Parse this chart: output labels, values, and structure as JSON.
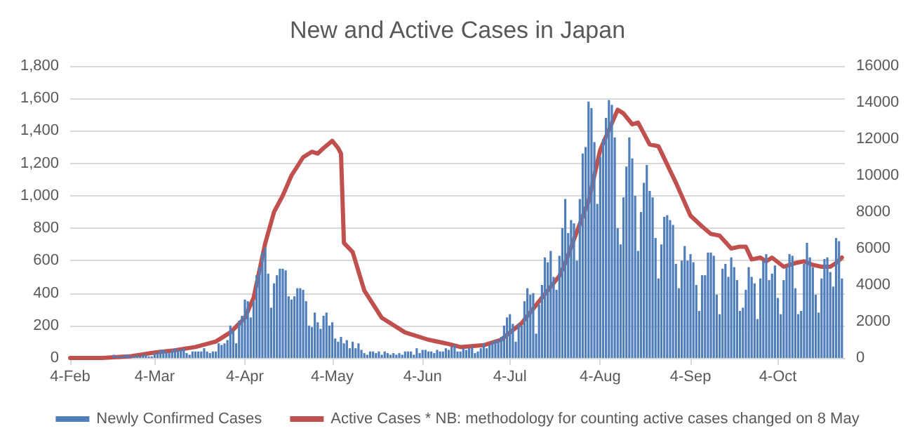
{
  "chart_data": {
    "type": "bar",
    "title": "New and Active Cases in Japan",
    "x": [
      "--02-04",
      "--02-05",
      "--02-06",
      "--02-07",
      "--02-08",
      "--02-09",
      "--02-10",
      "--02-11",
      "--02-12",
      "--02-13",
      "--02-14",
      "--02-15",
      "--02-16",
      "--02-17",
      "--02-18",
      "--02-19",
      "--02-20",
      "--02-21",
      "--02-22",
      "--02-23",
      "--02-24",
      "--02-25",
      "--02-26",
      "--02-27",
      "--02-28",
      "--02-29",
      "--03-01",
      "--03-02",
      "--03-03",
      "--03-04",
      "--03-05",
      "--03-06",
      "--03-07",
      "--03-08",
      "--03-09",
      "--03-10",
      "--03-11",
      "--03-12",
      "--03-13",
      "--03-14",
      "--03-15",
      "--03-16",
      "--03-17",
      "--03-18",
      "--03-19",
      "--03-20",
      "--03-21",
      "--03-22",
      "--03-23",
      "--03-24",
      "--03-25",
      "--03-26",
      "--03-27",
      "--03-28",
      "--03-29",
      "--03-30",
      "--03-31",
      "--04-01",
      "--04-02",
      "--04-03",
      "--04-04",
      "--04-05",
      "--04-06",
      "--04-07",
      "--04-08",
      "--04-09",
      "--04-10",
      "--04-11",
      "--04-12",
      "--04-13",
      "--04-14",
      "--04-15",
      "--04-16",
      "--04-17",
      "--04-18",
      "--04-19",
      "--04-20",
      "--04-21",
      "--04-22",
      "--04-23",
      "--04-24",
      "--04-25",
      "--04-26",
      "--04-27",
      "--04-28",
      "--04-29",
      "--04-30",
      "--05-01",
      "--05-02",
      "--05-03",
      "--05-04",
      "--05-05",
      "--05-06",
      "--05-07",
      "--05-08",
      "--05-09",
      "--05-10",
      "--05-11",
      "--05-12",
      "--05-13",
      "--05-14",
      "--05-15",
      "--05-16",
      "--05-17",
      "--05-18",
      "--05-19",
      "--05-20",
      "--05-21",
      "--05-22",
      "--05-23",
      "--05-24",
      "--05-25",
      "--05-26",
      "--05-27",
      "--05-28",
      "--05-29",
      "--05-30",
      "--05-31",
      "--06-01",
      "--06-02",
      "--06-03",
      "--06-04",
      "--06-05",
      "--06-06",
      "--06-07",
      "--06-08",
      "--06-09",
      "--06-10",
      "--06-11",
      "--06-12",
      "--06-13",
      "--06-14",
      "--06-15",
      "--06-16",
      "--06-17",
      "--06-18",
      "--06-19",
      "--06-20",
      "--06-21",
      "--06-22",
      "--06-23",
      "--06-24",
      "--06-25",
      "--06-26",
      "--06-27",
      "--06-28",
      "--06-29",
      "--06-30",
      "--07-01",
      "--07-02",
      "--07-03",
      "--07-04",
      "--07-05",
      "--07-06",
      "--07-07",
      "--07-08",
      "--07-09",
      "--07-10",
      "--07-11",
      "--07-12",
      "--07-13",
      "--07-14",
      "--07-15",
      "--07-16",
      "--07-17",
      "--07-18",
      "--07-19",
      "--07-20",
      "--07-21",
      "--07-22",
      "--07-23",
      "--07-24",
      "--07-25",
      "--07-26",
      "--07-27",
      "--07-28",
      "--07-29",
      "--07-30",
      "--07-31",
      "--08-01",
      "--08-02",
      "--08-03",
      "--08-04",
      "--08-05",
      "--08-06",
      "--08-07",
      "--08-08",
      "--08-09",
      "--08-10",
      "--08-11",
      "--08-12",
      "--08-13",
      "--08-14",
      "--08-15",
      "--08-16",
      "--08-17",
      "--08-18",
      "--08-19",
      "--08-20",
      "--08-21",
      "--08-22",
      "--08-23",
      "--08-24",
      "--08-25",
      "--08-26",
      "--08-27",
      "--08-28",
      "--08-29",
      "--08-30",
      "--08-31",
      "--09-01",
      "--09-02",
      "--09-03",
      "--09-04",
      "--09-05",
      "--09-06",
      "--09-07",
      "--09-08",
      "--09-09",
      "--09-10",
      "--09-11",
      "--09-12",
      "--09-13",
      "--09-14",
      "--09-15",
      "--09-16",
      "--09-17",
      "--09-18",
      "--09-19",
      "--09-20",
      "--09-21",
      "--09-22",
      "--09-23",
      "--09-24",
      "--09-25",
      "--09-26",
      "--09-27",
      "--09-28",
      "--09-29",
      "--09-30",
      "--10-01",
      "--10-02",
      "--10-03",
      "--10-04",
      "--10-05",
      "--10-06",
      "--10-07",
      "--10-08",
      "--10-09",
      "--10-10",
      "--10-11",
      "--10-12",
      "--10-13",
      "--10-14",
      "--10-15",
      "--10-16",
      "--10-17",
      "--10-18",
      "--10-19",
      "--10-20",
      "--10-21",
      "--10-22",
      "--10-23",
      "--10-24",
      "--10-25",
      "--10-26"
    ],
    "series": [
      {
        "name": "Newly Confirmed Cases",
        "color": "#4f7fbb",
        "values": [
          0,
          0,
          null,
          0,
          0,
          0,
          0,
          0,
          0,
          0,
          null,
          0,
          null,
          null,
          null,
          20,
          10,
          10,
          10,
          20,
          20,
          10,
          10,
          20,
          10,
          20,
          20,
          10,
          10,
          30,
          30,
          50,
          50,
          40,
          30,
          50,
          60,
          50,
          50,
          60,
          30,
          20,
          40,
          40,
          40,
          40,
          60,
          40,
          30,
          40,
          40,
          90,
          80,
          90,
          110,
          200,
          170,
          90,
          230,
          260,
          360,
          350,
          250,
          350,
          510,
          560,
          650,
          680,
          520,
          310,
          460,
          510,
          550,
          550,
          540,
          380,
          360,
          380,
          430,
          430,
          420,
          350,
          200,
          190,
          280,
          220,
          180,
          260,
          280,
          200,
          220,
          120,
          100,
          130,
          90,
          110,
          60,
          100,
          60,
          90,
          50,
          30,
          20,
          40,
          40,
          30,
          40,
          20,
          40,
          30,
          20,
          30,
          20,
          30,
          20,
          40,
          40,
          40,
          20,
          60,
          30,
          50,
          50,
          40,
          40,
          30,
          50,
          40,
          40,
          60,
          50,
          70,
          80,
          40,
          40,
          60,
          50,
          60,
          70,
          30,
          40,
          60,
          90,
          60,
          80,
          100,
          110,
          110,
          130,
          200,
          250,
          270,
          210,
          100,
          210,
          200,
          350,
          430,
          390,
          400,
          150,
          330,
          450,
          620,
          590,
          660,
          500,
          420,
          630,
          800,
          980,
          770,
          850,
          830,
          600,
          980,
          1260,
          1300,
          1580,
          1540,
          1330,
          950,
          1240,
          1350,
          1480,
          1590,
          1560,
          1360,
          800,
          700,
          990,
          1180,
          1360,
          1230,
          1000,
          660,
          900,
          1080,
          1190,
          1030,
          990,
          740,
          490,
          700,
          870,
          880,
          850,
          820,
          580,
          430,
          600,
          690,
          600,
          640,
          590,
          450,
          290,
          510,
          510,
          650,
          650,
          630,
          390,
          270,
          550,
          580,
          500,
          620,
          560,
          480,
          290,
          310,
          420,
          560,
          500,
          460,
          240,
          490,
          600,
          640,
          480,
          520,
          570,
          370,
          270,
          480,
          560,
          640,
          630,
          430,
          270,
          290,
          580,
          710,
          620,
          560,
          390,
          280,
          490,
          610,
          620,
          530,
          440,
          740,
          720,
          490
        ]
      },
      {
        "name": "Active Cases * NB: methodology for counting active cases changed on 8 May",
        "type": "line",
        "axis": "y2",
        "color": "#c0504d",
        "x": [
          "--02-04",
          "--02-15",
          "--02-25",
          "--03-04",
          "--03-10",
          "--03-18",
          "--03-25",
          "--03-30",
          "--04-04",
          "--04-07",
          "--04-11",
          "--04-14",
          "--04-17",
          "--04-20",
          "--04-24",
          "--04-27",
          "--04-29",
          "--05-01",
          "--05-04",
          "--05-06",
          "--05-07",
          "--05-08",
          "--05-11",
          "--05-15",
          "--05-21",
          "--05-29",
          "--06-06",
          "--06-12",
          "--06-17",
          "--06-25",
          "--07-01",
          "--07-04",
          "--07-08",
          "--07-12",
          "--07-16",
          "--07-21",
          "--07-23",
          "--07-26",
          "--07-31",
          "--08-02",
          "--08-04",
          "--08-07",
          "--08-10",
          "--08-12",
          "--08-15",
          "--08-17",
          "--08-21",
          "--08-24",
          "--08-27",
          "--08-30",
          "--09-04",
          "--09-08",
          "--09-11",
          "--09-14",
          "--09-18",
          "--09-21",
          "--09-23",
          "--09-25",
          "--09-28",
          "--09-30",
          "--10-02",
          "--10-06",
          "--10-10",
          "--10-13",
          "--10-16",
          "--10-19",
          "--10-22",
          "--10-24",
          "--10-26"
        ],
        "values": [
          0,
          0,
          100,
          300,
          400,
          600,
          900,
          1400,
          2200,
          3300,
          6300,
          8000,
          8900,
          10000,
          11000,
          11300,
          11200,
          11500,
          11900,
          11500,
          11200,
          6300,
          5800,
          3700,
          2200,
          1400,
          1000,
          800,
          600,
          700,
          1000,
          1400,
          1900,
          2700,
          3500,
          4500,
          5200,
          6500,
          8600,
          10000,
          11400,
          12500,
          13600,
          13400,
          12800,
          12900,
          11700,
          11600,
          10600,
          9600,
          7800,
          7200,
          6800,
          6700,
          6000,
          6100,
          6100,
          5400,
          5500,
          5300,
          5500,
          5000,
          5200,
          5300,
          5100,
          5000,
          5000,
          5200,
          5500
        ]
      }
    ],
    "xlim": [
      "--02-04",
      "--10-27"
    ],
    "xticks": [
      {
        "value": "--02-04",
        "label": "4-Feb"
      },
      {
        "value": "--03-04",
        "label": "4-Mar"
      },
      {
        "value": "--04-04",
        "label": "4-Apr"
      },
      {
        "value": "--05-04",
        "label": "4-May"
      },
      {
        "value": "--06-04",
        "label": "4-Jun"
      },
      {
        "value": "--07-04",
        "label": "4-Jul"
      },
      {
        "value": "--08-04",
        "label": "4-Aug"
      },
      {
        "value": "--09-04",
        "label": "4-Sep"
      },
      {
        "value": "--10-04",
        "label": "4-Oct"
      }
    ],
    "ylim": [
      0,
      1800
    ],
    "yticks": [
      0,
      {
        "value": 200,
        "label": "200"
      },
      {
        "value": 400,
        "label": "400"
      },
      {
        "value": 600,
        "label": "600"
      },
      {
        "value": 800,
        "label": "800"
      },
      {
        "value": 1000,
        "label": "1,000"
      },
      {
        "value": 1200,
        "label": "1,200"
      },
      {
        "value": 1400,
        "label": "1,400"
      },
      {
        "value": 1600,
        "label": "1,600"
      },
      {
        "value": 1800,
        "label": "1,800"
      }
    ],
    "y2lim": [
      0,
      16000
    ],
    "y2ticks": [
      0,
      2000,
      4000,
      6000,
      8000,
      10000,
      12000,
      14000,
      16000
    ],
    "grid": "y",
    "legend": "bottom",
    "marker": "none",
    "line_style": "solid"
  }
}
